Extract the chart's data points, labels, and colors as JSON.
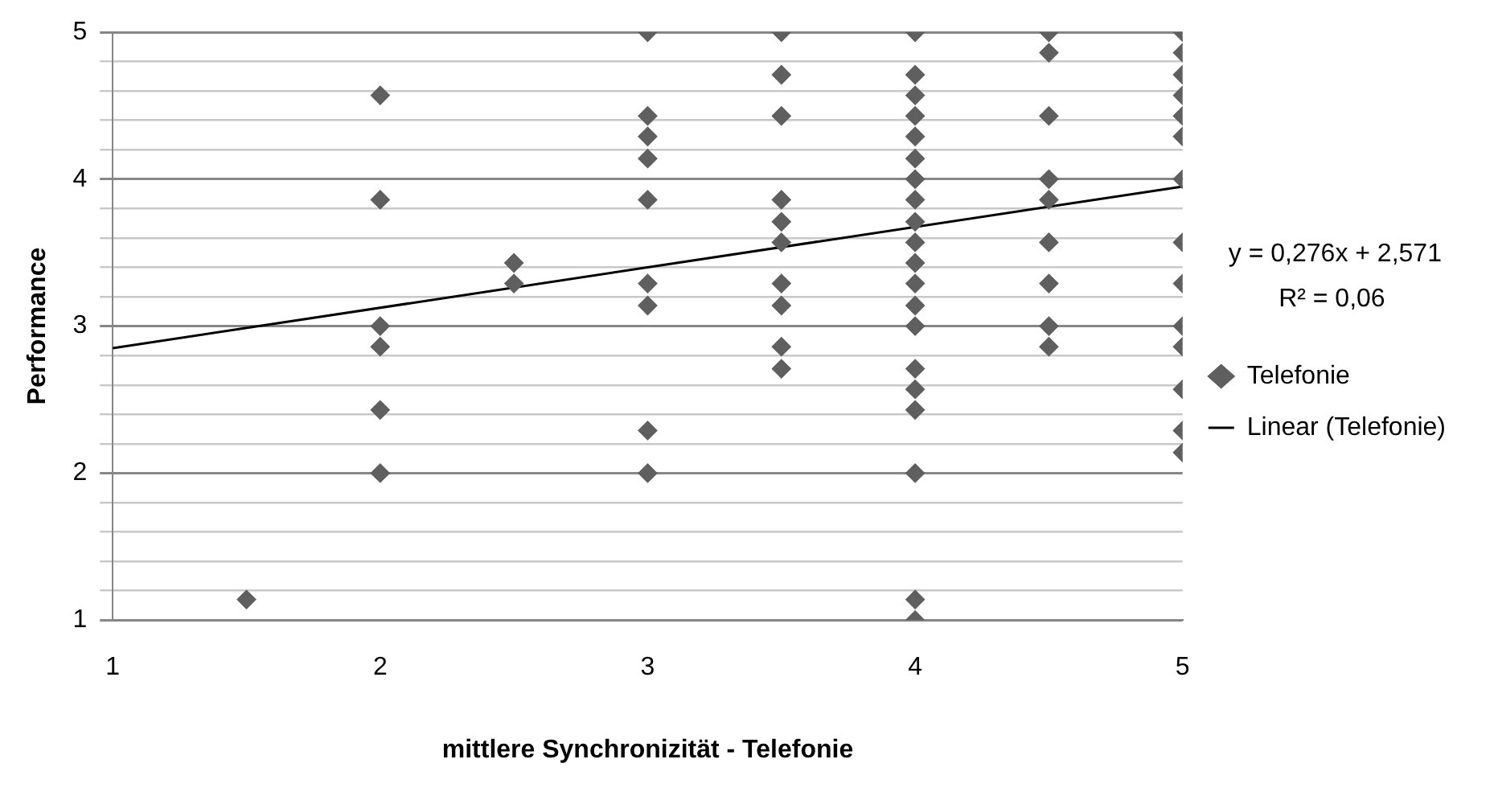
{
  "chart_data": {
    "type": "scatter",
    "xlabel": "mittlere Synchronizität - Telefonie",
    "ylabel": "Performance",
    "xlim": [
      1,
      5
    ],
    "xticks": [
      1,
      2,
      3,
      4,
      5
    ],
    "ylim": [
      1,
      5
    ],
    "yticks": [
      1,
      {
        "value": 1.2,
        "label": null
      },
      {
        "value": 1.4,
        "label": null
      },
      {
        "value": 1.6,
        "label": null
      },
      {
        "value": 1.8,
        "label": null
      },
      2,
      {
        "value": 2.2,
        "label": null
      },
      {
        "value": 2.4,
        "label": null
      },
      {
        "value": 2.6,
        "label": null
      },
      {
        "value": 2.8,
        "label": null
      },
      3,
      {
        "value": 3.2,
        "label": null
      },
      {
        "value": 3.4,
        "label": null
      },
      {
        "value": 3.6,
        "label": null
      },
      {
        "value": 3.8,
        "label": null
      },
      4,
      {
        "value": 4.2,
        "label": null
      },
      {
        "value": 4.4,
        "label": null
      },
      {
        "value": 4.6,
        "label": null
      },
      {
        "value": 4.8,
        "label": null
      },
      5
    ],
    "grid": "y",
    "legend": "right",
    "annotations": [
      "y = 0,276x + 2,571",
      "R² = 0,06"
    ],
    "series": [
      {
        "name": "Telefonie",
        "marker": "diamond",
        "color": "#5f5f5f",
        "x": [
          1.5,
          2,
          2,
          2,
          2,
          2,
          2,
          2.5,
          2.5,
          3,
          3,
          3,
          3,
          3,
          3,
          3,
          3,
          3,
          3.5,
          3.5,
          3.5,
          3.5,
          3.5,
          3.5,
          3.5,
          3.5,
          3.5,
          3.5,
          4,
          4,
          4,
          4,
          4,
          4,
          4,
          4,
          4,
          4,
          4,
          4,
          4,
          4,
          4,
          4,
          4,
          4,
          4,
          4,
          4.5,
          4.5,
          4.5,
          4.5,
          4.5,
          4.5,
          4.5,
          4.5,
          4.5,
          5,
          5,
          5,
          5,
          5,
          5,
          5,
          5,
          5,
          5,
          5,
          5,
          5,
          5
        ],
        "values": [
          1.14,
          4.57,
          3.86,
          3,
          2.86,
          2.43,
          2,
          3.43,
          3.29,
          5,
          4.43,
          4.29,
          4.14,
          3.86,
          3.29,
          3.14,
          2.29,
          2,
          5,
          4.71,
          4.43,
          3.86,
          3.71,
          3.57,
          3.29,
          3.14,
          2.86,
          2.71,
          5,
          4.71,
          4.57,
          4.43,
          4.29,
          4.14,
          4,
          3.86,
          3.71,
          3.57,
          3.43,
          3.29,
          3.14,
          3,
          2.71,
          2.57,
          2.43,
          2,
          1.14,
          1,
          5,
          4.86,
          4.43,
          4,
          3.86,
          3.57,
          3.29,
          3,
          2.86,
          5,
          4.86,
          4.71,
          4.57,
          4.43,
          4.29,
          4,
          3.57,
          3.29,
          3,
          2.86,
          2.57,
          2.29,
          2.14
        ]
      },
      {
        "name": "Linear (Telefonie)",
        "type": "line",
        "color": "#000000",
        "line_style": "solid",
        "marker": "none",
        "x": [
          1,
          5
        ],
        "values": [
          2.85,
          3.95
        ]
      }
    ]
  }
}
